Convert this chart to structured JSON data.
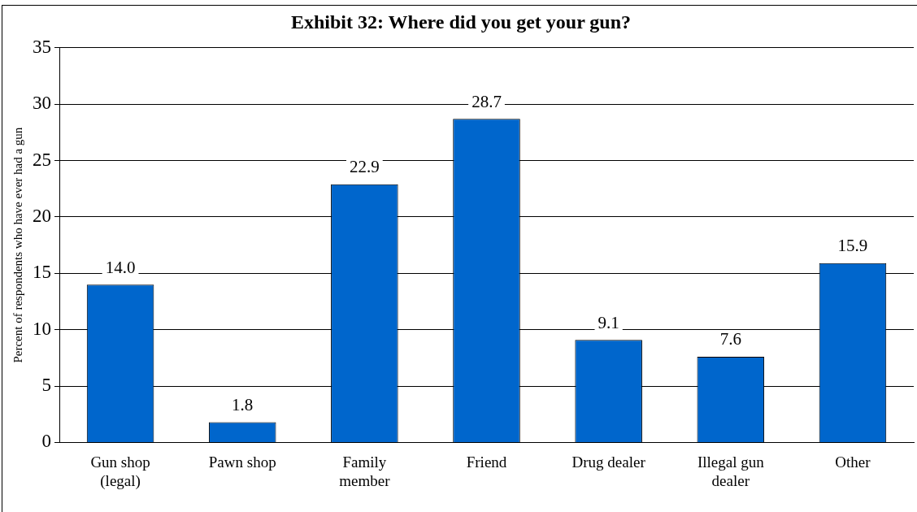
{
  "chart_data": {
    "type": "bar",
    "title": "Exhibit 32: Where did you get your gun?",
    "ylabel": "Percent of respondents who have ever had a gun",
    "categories": [
      "Gun shop (legal)",
      "Pawn shop",
      "Family member",
      "Friend",
      "Drug dealer",
      "Illegal gun dealer",
      "Other"
    ],
    "values": [
      14.0,
      1.8,
      22.9,
      28.7,
      9.1,
      7.6,
      15.9
    ],
    "color": "#0066cc",
    "value_labels": [
      "14.0",
      "1.8",
      "22.9",
      "28.7",
      "9.1",
      "7.6",
      "15.9"
    ],
    "ylim": [
      0,
      35
    ],
    "yticks": [
      0,
      5,
      10,
      15,
      20,
      25,
      30,
      35
    ],
    "grid": "y",
    "legend": false
  }
}
